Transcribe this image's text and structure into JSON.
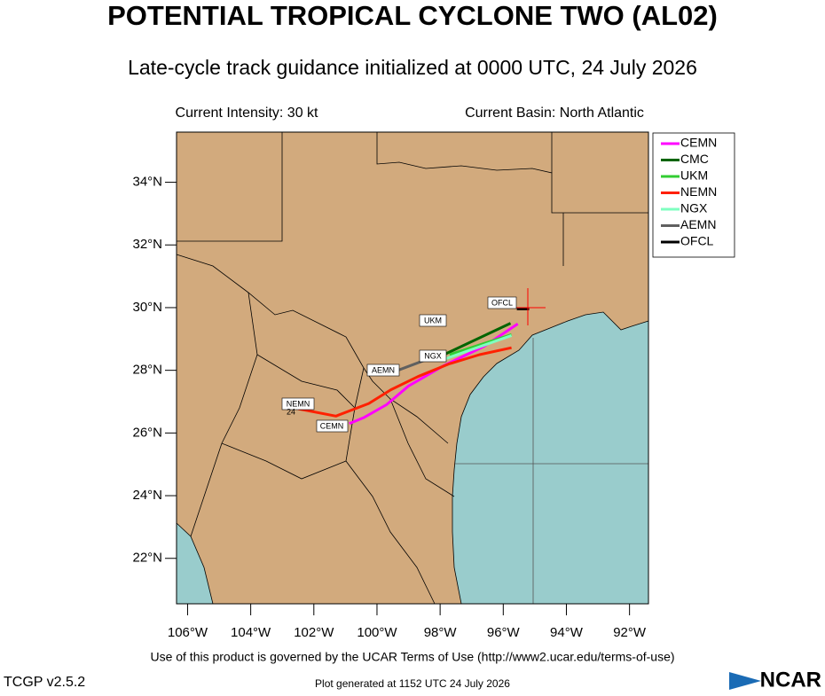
{
  "chart_data": {
    "type": "track",
    "title": "POTENTIAL TROPICAL CYCLONE TWO (AL02)",
    "subtitle": "Late-cycle track guidance initialized at 0000 UTC, 24 July 2026",
    "intensity": "Current Intensity: 30 kt",
    "basin": "Current Basin: North Atlantic",
    "xlim": [
      -106.35,
      -91.4
    ],
    "ylim": [
      20.55,
      35.6
    ],
    "xticks": [
      {
        "value": -106,
        "label": "106°W"
      },
      {
        "value": -104,
        "label": "104°W"
      },
      {
        "value": -102,
        "label": "102°W"
      },
      {
        "value": -100,
        "label": "100°W"
      },
      {
        "value": -98,
        "label": "98°W"
      },
      {
        "value": -96,
        "label": "96°W"
      },
      {
        "value": -94,
        "label": "94°W"
      },
      {
        "value": -92,
        "label": "92°W"
      }
    ],
    "yticks": [
      {
        "value": 22,
        "label": "22°N"
      },
      {
        "value": 24,
        "label": "24°N"
      },
      {
        "value": 26,
        "label": "26°N"
      },
      {
        "value": 28,
        "label": "28°N"
      },
      {
        "value": 30,
        "label": "30°N"
      },
      {
        "value": 32,
        "label": "32°N"
      },
      {
        "value": 34,
        "label": "34°N"
      }
    ],
    "series": [
      {
        "name": "CEMN",
        "color": "#ff00ff",
        "x": [
          -95.54,
          -96.6,
          -97.88,
          -99.0,
          -99.7,
          -100.4,
          -100.88
        ],
        "values": [
          29.48,
          28.77,
          28.15,
          27.5,
          26.9,
          26.5,
          26.3
        ]
      },
      {
        "name": "CMC",
        "color": "#006400",
        "x": [
          -95.77,
          -97.88
        ],
        "values": [
          29.5,
          28.5
        ]
      },
      {
        "name": "UKM",
        "color": "#32cd32",
        "x": [
          -95.74,
          -97.7
        ],
        "values": [
          29.14,
          28.5
        ]
      },
      {
        "name": "NEMN",
        "color": "#ff2000",
        "x": [
          -95.74,
          -96.75,
          -97.73,
          -98.7,
          -99.56,
          -100.26,
          -101.3,
          -102.49
        ],
        "values": [
          28.72,
          28.5,
          28.2,
          27.8,
          27.38,
          26.94,
          26.54,
          26.77
        ]
      },
      {
        "name": "NGX",
        "color": "#7fffc0",
        "x": [
          -95.74,
          -97.88
        ],
        "values": [
          29.11,
          28.35
        ]
      },
      {
        "name": "AEMN",
        "color": "#606060",
        "x": [
          -97.88,
          -99.34
        ],
        "values": [
          28.55,
          28.0
        ]
      },
      {
        "name": "OFCL",
        "color": "#000000",
        "x": [
          -95.57,
          -95.18
        ],
        "values": [
          29.96,
          29.96
        ]
      }
    ],
    "annotations": [
      "OFCL",
      "UKM",
      "NGX",
      "AEMN",
      "NEMN",
      "24",
      "CEMN"
    ],
    "terms": "Use of this product is governed by the UCAR Terms of Use (http://www2.ucar.edu/terms-of-use)",
    "version": "TCGP v2.5.2",
    "generated": "Plot generated at 1152 UTC  24 July 2026",
    "logo": "NCAR"
  }
}
